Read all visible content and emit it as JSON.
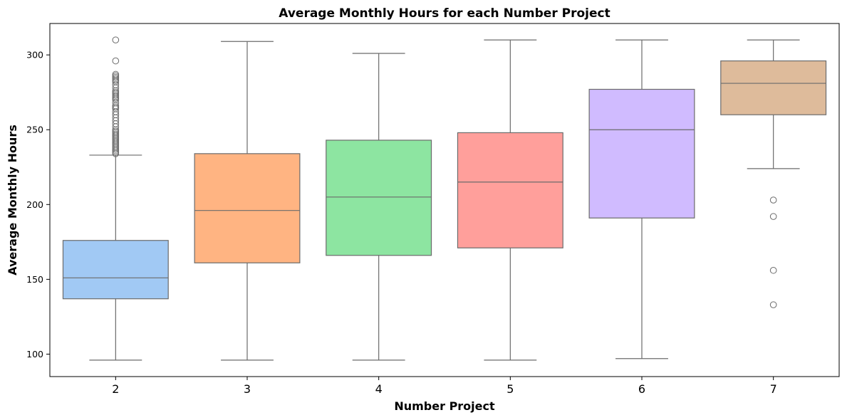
{
  "chart_data": {
    "type": "box",
    "title": "Average Monthly Hours for each Number Project",
    "xlabel": "Number Project",
    "ylabel": "Average Monthly Hours",
    "categories": [
      "2",
      "3",
      "4",
      "5",
      "6",
      "7"
    ],
    "ylim": [
      85,
      321
    ],
    "yticks": [
      100,
      150,
      200,
      250,
      300
    ],
    "grid": false,
    "legend": "none",
    "line_color": "#6b6b6b",
    "boxes": [
      {
        "category": "2",
        "color": "#a1c9f4",
        "whisker_low": 96,
        "q1": 137,
        "median": 151,
        "q3": 176,
        "whisker_high": 233,
        "outliers": [
          234,
          235,
          236,
          237,
          238,
          239,
          240,
          241,
          242,
          243,
          244,
          245,
          246,
          247,
          248,
          249,
          250,
          252,
          254,
          256,
          258,
          260,
          262,
          264,
          265,
          266,
          268,
          270,
          271,
          272,
          273,
          274,
          275,
          276,
          278,
          280,
          282,
          283,
          284,
          285,
          286,
          287,
          296,
          310
        ]
      },
      {
        "category": "3",
        "color": "#ffb482",
        "whisker_low": 96,
        "q1": 161,
        "median": 196,
        "q3": 234,
        "whisker_high": 309,
        "outliers": []
      },
      {
        "category": "4",
        "color": "#8de5a1",
        "whisker_low": 96,
        "q1": 166,
        "median": 205,
        "q3": 243,
        "whisker_high": 301,
        "outliers": []
      },
      {
        "category": "5",
        "color": "#ff9f9b",
        "whisker_low": 96,
        "q1": 171,
        "median": 215,
        "q3": 248,
        "whisker_high": 310,
        "outliers": []
      },
      {
        "category": "6",
        "color": "#d0bbff",
        "whisker_low": 97,
        "q1": 191,
        "median": 250,
        "q3": 277,
        "whisker_high": 310,
        "outliers": []
      },
      {
        "category": "7",
        "color": "#debb9b",
        "whisker_low": 224,
        "q1": 260,
        "median": 281,
        "q3": 296,
        "whisker_high": 310,
        "outliers": [
          133,
          156,
          192,
          203
        ]
      }
    ]
  }
}
